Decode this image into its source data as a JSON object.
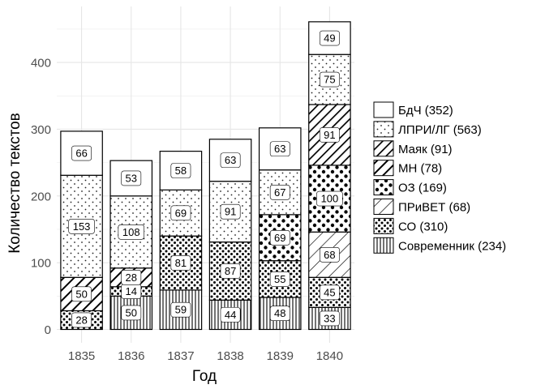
{
  "chart_data": {
    "type": "bar",
    "stacked": true,
    "title": "",
    "xlabel": "Год",
    "ylabel": "Количество текстов",
    "ylim": [
      0,
      460
    ],
    "yticks": [
      0,
      100,
      200,
      300,
      400
    ],
    "grid": true,
    "legend_position": "right",
    "categories": [
      "1835",
      "1836",
      "1837",
      "1838",
      "1839",
      "1840"
    ],
    "series": [
      {
        "name": "Современник (234)",
        "pattern": "vertical-lines",
        "values": [
          null,
          50,
          59,
          44,
          48,
          33
        ]
      },
      {
        "name": "СО (310)",
        "pattern": "small-dots",
        "values": [
          28,
          14,
          81,
          87,
          55,
          45
        ]
      },
      {
        "name": "ПРиВЕТ (68)",
        "pattern": "sparse-diagonal",
        "values": [
          null,
          null,
          null,
          null,
          null,
          68
        ]
      },
      {
        "name": "ОЗ (169)",
        "pattern": "large-dots",
        "values": [
          null,
          null,
          null,
          null,
          69,
          100
        ]
      },
      {
        "name": "МН (78)",
        "pattern": "thick-diagonal",
        "values": [
          50,
          28,
          null,
          null,
          null,
          null
        ]
      },
      {
        "name": "Маяк (91)",
        "pattern": "dense-thick-diagonal",
        "values": [
          null,
          null,
          null,
          null,
          null,
          91
        ]
      },
      {
        "name": "ЛПРИ/ЛГ (563)",
        "pattern": "fine-dots",
        "values": [
          153,
          108,
          69,
          91,
          67,
          75
        ]
      },
      {
        "name": "БдЧ (352)",
        "pattern": "empty",
        "values": [
          66,
          53,
          58,
          63,
          63,
          49
        ]
      }
    ],
    "legend_order": [
      "БдЧ (352)",
      "ЛПРИ/ЛГ (563)",
      "Маяк (91)",
      "МН (78)",
      "ОЗ (169)",
      "ПРиВЕТ (68)",
      "СО (310)",
      "Современник (234)"
    ]
  }
}
